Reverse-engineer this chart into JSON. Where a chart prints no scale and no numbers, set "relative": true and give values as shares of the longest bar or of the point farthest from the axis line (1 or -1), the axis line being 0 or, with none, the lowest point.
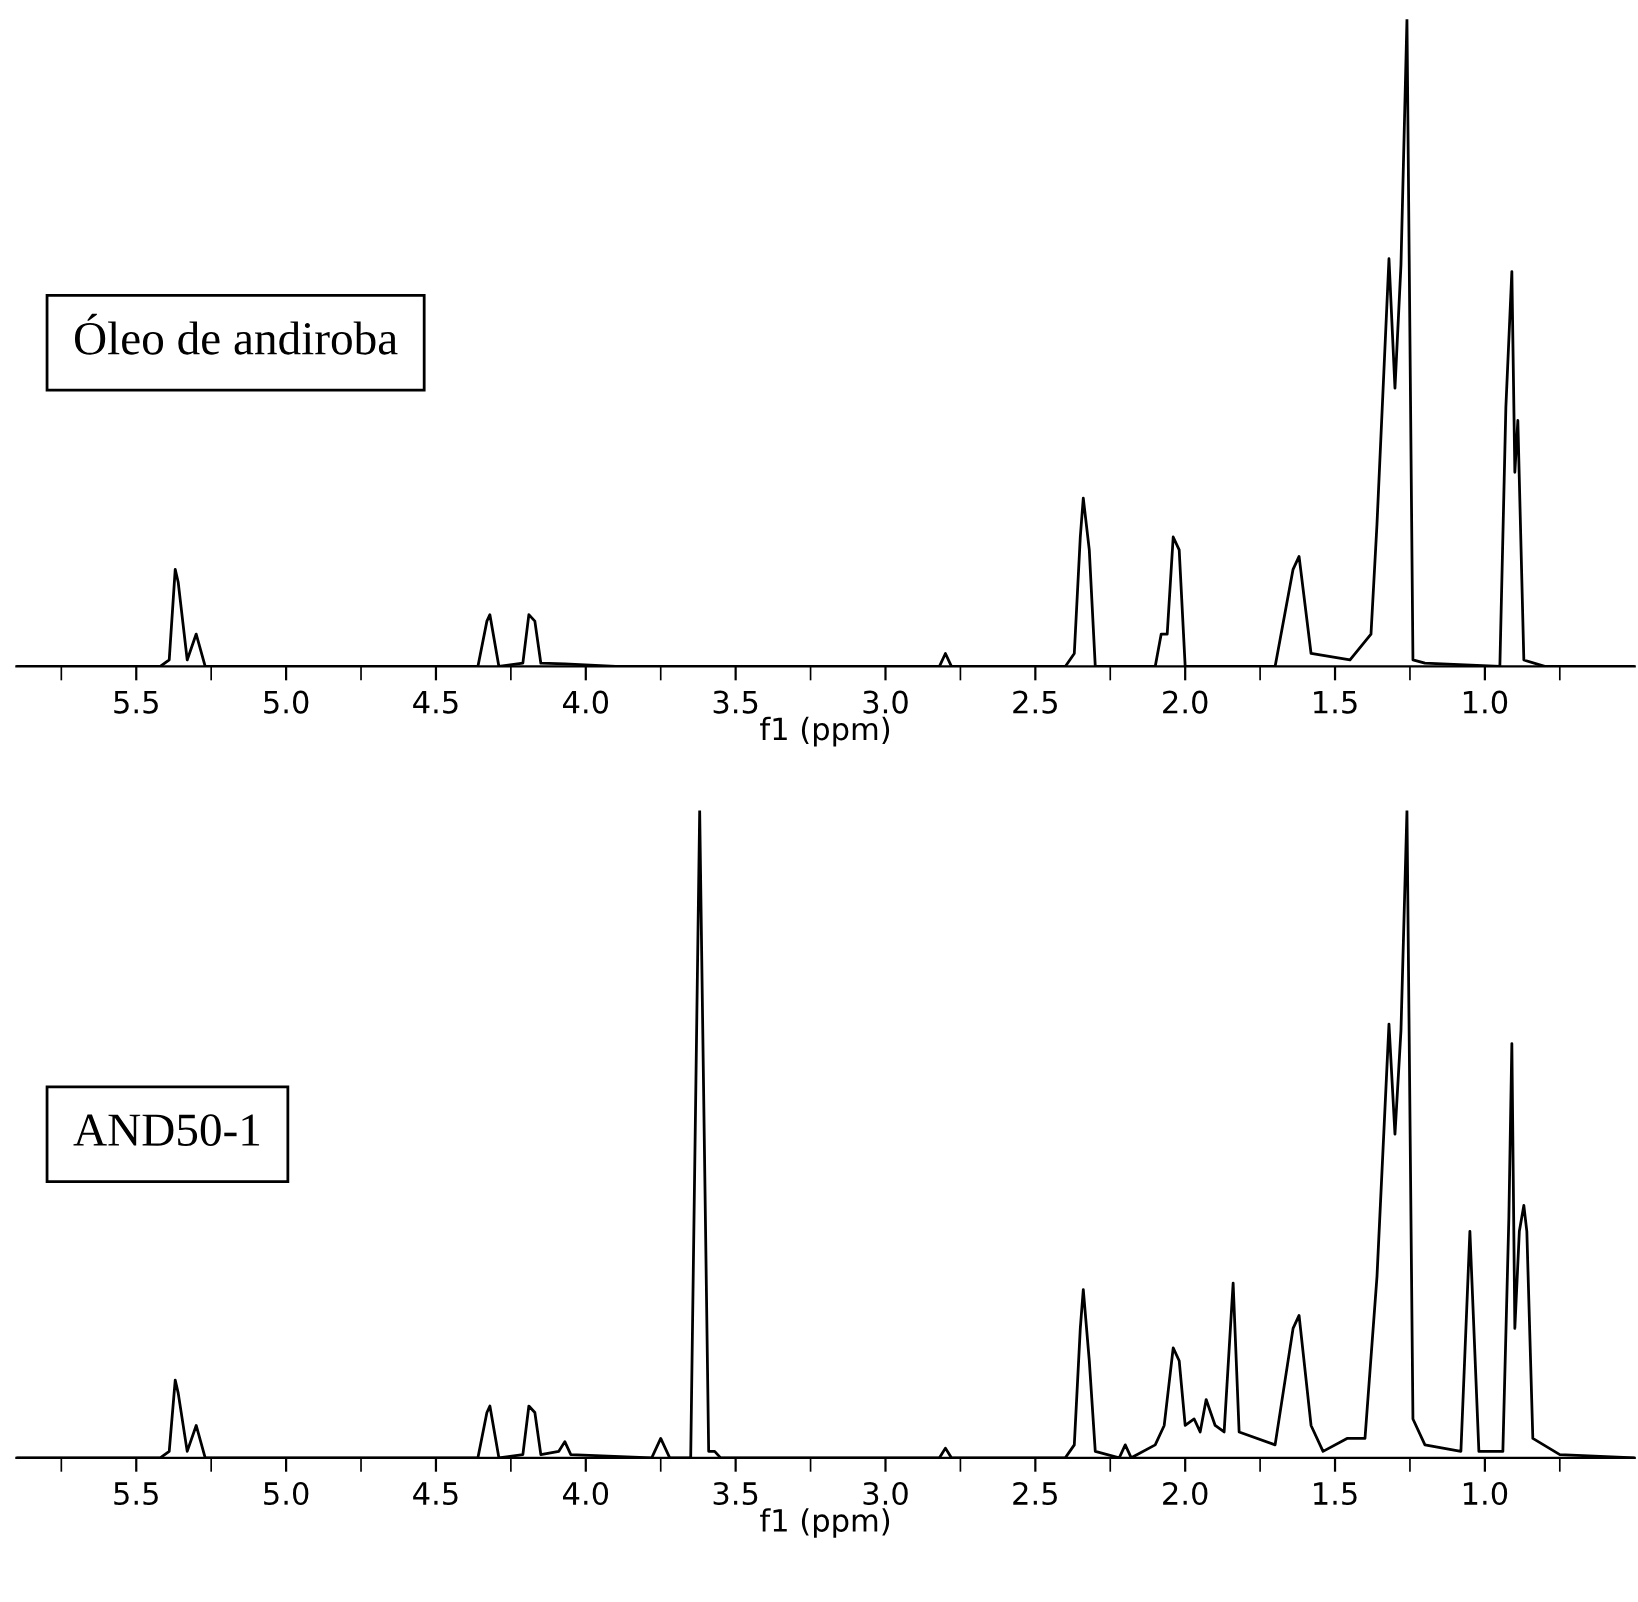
{
  "chart_data": [
    {
      "type": "line",
      "relative": true,
      "tick_labels": "x",
      "xlabel": "f1 (ppm)",
      "xlim": [
        5.9,
        0.5
      ],
      "xticks": [
        {
          "value": 5.75,
          "label": null
        },
        5.5,
        {
          "value": 5.25,
          "label": null
        },
        {
          "value": 5,
          "label": "5.0"
        },
        {
          "value": 4.75,
          "label": null
        },
        4.5,
        {
          "value": 4.25,
          "label": null
        },
        {
          "value": 4,
          "label": "4.0"
        },
        {
          "value": 3.75,
          "label": null
        },
        3.5,
        {
          "value": 3.25,
          "label": null
        },
        {
          "value": 3,
          "label": "3.0"
        },
        {
          "value": 2.75,
          "label": null
        },
        2.5,
        {
          "value": 2.25,
          "label": null
        },
        {
          "value": 2,
          "label": "2.0"
        },
        {
          "value": 1.75,
          "label": null
        },
        1.5,
        {
          "value": 1.25,
          "label": null
        },
        {
          "value": 1,
          "label": "1.0"
        },
        {
          "value": 0.75,
          "label": null
        }
      ],
      "annotations": [
        "Óleo de andiroba"
      ],
      "x": [
        5.9,
        5.42,
        5.39,
        5.37,
        5.36,
        5.33,
        5.3,
        5.27,
        4.36,
        4.33,
        4.32,
        4.29,
        4.21,
        4.19,
        4.17,
        4.15,
        4.07,
        3.9,
        2.82,
        2.8,
        2.78,
        2.4,
        2.37,
        2.35,
        2.34,
        2.32,
        2.3,
        2.1,
        2.08,
        2.06,
        2.04,
        2.02,
        2.0,
        1.7,
        1.64,
        1.62,
        1.58,
        1.45,
        1.38,
        1.36,
        1.32,
        1.3,
        1.28,
        1.26,
        1.24,
        1.2,
        0.95,
        0.93,
        0.91,
        0.9,
        0.89,
        0.87,
        0.8,
        0.5
      ],
      "series": [
        {
          "color": "#000000",
          "values": [
            0,
            0,
            0.01,
            0.15,
            0.13,
            0.01,
            0.05,
            0,
            0,
            0.07,
            0.08,
            0,
            0.005,
            0.08,
            0.07,
            0.005,
            0.004,
            0,
            0,
            0.02,
            0,
            0,
            0.02,
            0.2,
            0.26,
            0.18,
            0,
            0,
            0.05,
            0.05,
            0.2,
            0.18,
            0,
            0,
            0.15,
            0.17,
            0.02,
            0.01,
            0.05,
            0.22,
            0.63,
            0.43,
            0.62,
            1,
            0.01,
            0.005,
            0,
            0.4,
            0.61,
            0.3,
            0.38,
            0.01,
            0,
            0
          ]
        }
      ]
    },
    {
      "type": "line",
      "relative": true,
      "tick_labels": "x",
      "xlabel": "f1 (ppm)",
      "xlim": [
        5.9,
        0.5
      ],
      "xticks": [
        {
          "value": 5.75,
          "label": null
        },
        5.5,
        {
          "value": 5.25,
          "label": null
        },
        {
          "value": 5,
          "label": "5.0"
        },
        {
          "value": 4.75,
          "label": null
        },
        4.5,
        {
          "value": 4.25,
          "label": null
        },
        {
          "value": 4,
          "label": "4.0"
        },
        {
          "value": 3.75,
          "label": null
        },
        3.5,
        {
          "value": 3.25,
          "label": null
        },
        {
          "value": 3,
          "label": "3.0"
        },
        {
          "value": 2.75,
          "label": null
        },
        2.5,
        {
          "value": 2.25,
          "label": null
        },
        {
          "value": 2,
          "label": "2.0"
        },
        {
          "value": 1.75,
          "label": null
        },
        1.5,
        {
          "value": 1.25,
          "label": null
        },
        {
          "value": 1,
          "label": "1.0"
        },
        {
          "value": 0.75,
          "label": null
        }
      ],
      "annotations": [
        "AND50-1"
      ],
      "x": [
        5.9,
        5.42,
        5.39,
        5.37,
        5.36,
        5.33,
        5.3,
        5.27,
        4.36,
        4.33,
        4.32,
        4.29,
        4.21,
        4.19,
        4.17,
        4.15,
        4.09,
        4.07,
        4.05,
        3.78,
        3.75,
        3.72,
        3.65,
        3.62,
        3.59,
        3.57,
        3.55,
        2.82,
        2.8,
        2.78,
        2.4,
        2.37,
        2.35,
        2.34,
        2.32,
        2.3,
        2.22,
        2.2,
        2.18,
        2.1,
        2.07,
        2.04,
        2.02,
        2.0,
        1.97,
        1.95,
        1.93,
        1.9,
        1.87,
        1.84,
        1.82,
        1.7,
        1.64,
        1.62,
        1.58,
        1.54,
        1.46,
        1.4,
        1.36,
        1.32,
        1.3,
        1.28,
        1.26,
        1.24,
        1.2,
        1.08,
        1.05,
        1.02,
        0.94,
        0.92,
        0.91,
        0.9,
        0.885,
        0.87,
        0.86,
        0.84,
        0.75,
        0.5
      ],
      "series": [
        {
          "color": "#000000",
          "values": [
            0,
            0,
            0.01,
            0.12,
            0.1,
            0.01,
            0.05,
            0,
            0,
            0.07,
            0.08,
            0,
            0.005,
            0.08,
            0.07,
            0.005,
            0.01,
            0.025,
            0.005,
            0,
            0.03,
            0,
            0,
            1,
            0.01,
            0.01,
            0,
            0,
            0.015,
            0,
            0,
            0.02,
            0.2,
            0.26,
            0.15,
            0.01,
            0,
            0.02,
            0,
            0.02,
            0.05,
            0.17,
            0.15,
            0.05,
            0.06,
            0.04,
            0.09,
            0.05,
            0.04,
            0.27,
            0.04,
            0.02,
            0.2,
            0.22,
            0.05,
            0.01,
            0.03,
            0.03,
            0.28,
            0.67,
            0.5,
            0.66,
            1,
            0.06,
            0.02,
            0.01,
            0.35,
            0.01,
            0.01,
            0.37,
            0.64,
            0.2,
            0.35,
            0.39,
            0.35,
            0.03,
            0.005,
            0
          ]
        }
      ]
    }
  ]
}
